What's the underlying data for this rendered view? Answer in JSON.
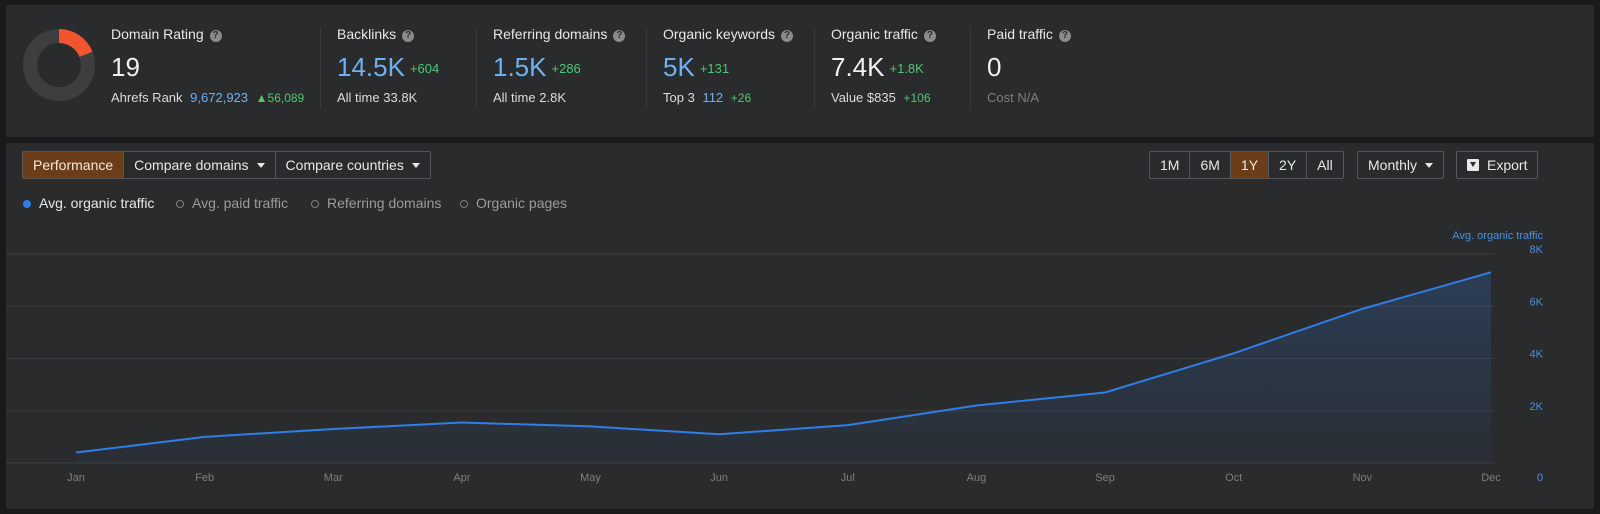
{
  "stats": {
    "domain_rating": {
      "title": "Domain Rating",
      "value": "19",
      "rank_label": "Ahrefs Rank",
      "rank_value": "9,672,923",
      "rank_change": "▲56,089",
      "gauge_fraction": 0.19,
      "gauge_color": "#f2542d"
    },
    "backlinks": {
      "title": "Backlinks",
      "value": "14.5K",
      "delta": "+604",
      "sub_label": "All time",
      "sub_value": "33.8K"
    },
    "referring_domains": {
      "title": "Referring domains",
      "value": "1.5K",
      "delta": "+286",
      "sub_label": "All time",
      "sub_value": "2.8K"
    },
    "organic_keywords": {
      "title": "Organic keywords",
      "value": "5K",
      "delta": "+131",
      "sub_label": "Top 3",
      "sub_value": "112",
      "sub_delta": "+26"
    },
    "organic_traffic": {
      "title": "Organic traffic",
      "value": "7.4K",
      "delta": "+1.8K",
      "sub_label": "Value",
      "sub_value": "$835",
      "sub_delta": "+106"
    },
    "paid_traffic": {
      "title": "Paid traffic",
      "value": "0",
      "sub_label": "Cost",
      "sub_value": "N/A"
    }
  },
  "toolbar": {
    "views": [
      "Performance",
      "Compare domains",
      "Compare countries"
    ],
    "active_view": "Performance",
    "ranges": [
      "1M",
      "6M",
      "1Y",
      "2Y",
      "All"
    ],
    "active_range": "1Y",
    "interval": "Monthly",
    "export_label": "Export"
  },
  "legend": [
    {
      "label": "Avg. organic traffic",
      "active": true
    },
    {
      "label": "Avg. paid traffic",
      "active": false
    },
    {
      "label": "Referring domains",
      "active": false
    },
    {
      "label": "Organic pages",
      "active": false
    }
  ],
  "colors": {
    "accent_blue": "#2f7ee8",
    "active_button": "#6b3d18",
    "positive": "#4cc970",
    "value_blue": "#6fb1f0"
  },
  "chart_data": {
    "type": "area",
    "title": "",
    "xlabel": "",
    "ylabel": "Avg. organic traffic",
    "categories": [
      "Jan",
      "Feb",
      "Mar",
      "Apr",
      "May",
      "Jun",
      "Jul",
      "Aug",
      "Sep",
      "Oct",
      "Nov",
      "Dec"
    ],
    "series": [
      {
        "name": "Avg. organic traffic",
        "values": [
          400,
          1000,
          1300,
          1550,
          1400,
          1100,
          1450,
          2200,
          2700,
          4200,
          5900,
          7300
        ]
      }
    ],
    "ylim": [
      0,
      8000
    ],
    "yticks": [
      0,
      2000,
      4000,
      6000,
      8000
    ],
    "ytick_labels": [
      "0",
      "2K",
      "4K",
      "6K",
      "8K"
    ],
    "y_axis_position": "right",
    "grid": true
  }
}
